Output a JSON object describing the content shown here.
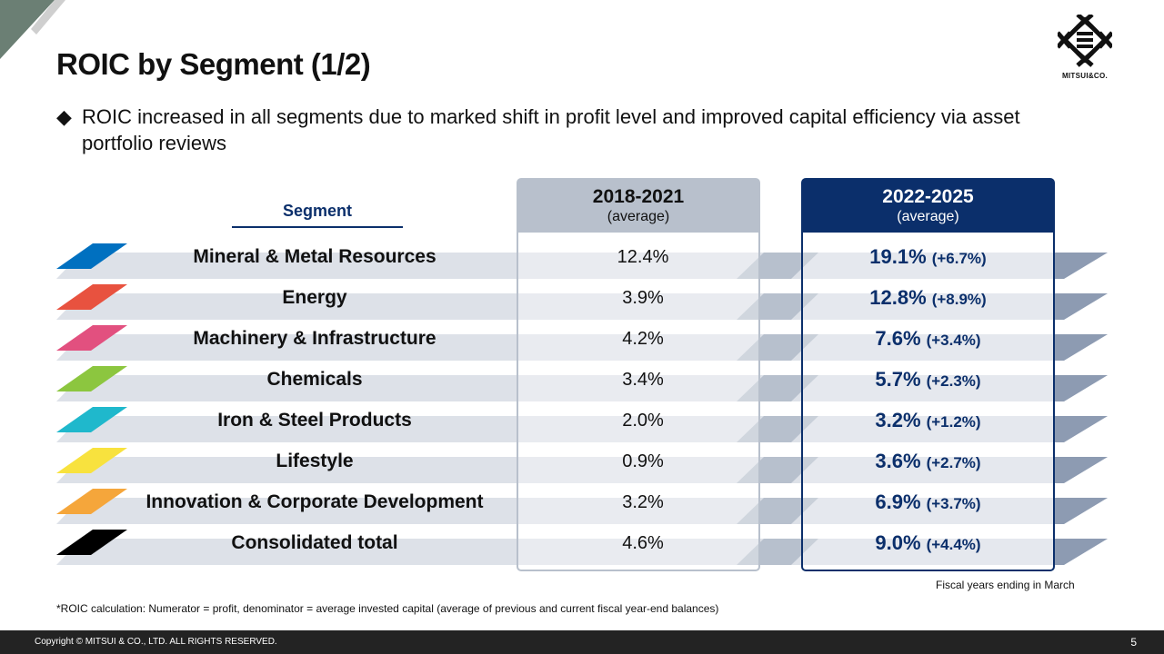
{
  "title": "ROIC by Segment (1/2)",
  "bullet": "ROIC increased in all segments due to marked shift in profit level and improved capital efficiency via asset portfolio reviews",
  "segment_header": "Segment",
  "columns": [
    {
      "years": "2018-2021",
      "sub": "(average)"
    },
    {
      "years": "2022-2025",
      "sub": "(average)"
    }
  ],
  "rows": [
    {
      "segment": "Mineral & Metal Resources",
      "color": "#0070c0",
      "prev": "12.4%",
      "curr": "19.1%",
      "diff": "(+6.7%)"
    },
    {
      "segment": "Energy",
      "color": "#e8523f",
      "prev": "3.9%",
      "curr": "12.8%",
      "diff": "(+8.9%)"
    },
    {
      "segment": "Machinery & Infrastructure",
      "color": "#e2507f",
      "prev": "4.2%",
      "curr": "7.6%",
      "diff": "(+3.4%)"
    },
    {
      "segment": "Chemicals",
      "color": "#8cc63f",
      "prev": "3.4%",
      "curr": "5.7%",
      "diff": "(+2.3%)"
    },
    {
      "segment": "Iron & Steel Products",
      "color": "#1fb8cc",
      "prev": "2.0%",
      "curr": "3.2%",
      "diff": "(+1.2%)"
    },
    {
      "segment": "Lifestyle",
      "color": "#f8e23e",
      "prev": "0.9%",
      "curr": "3.6%",
      "diff": "(+2.7%)"
    },
    {
      "segment": "Innovation & Corporate Development",
      "color": "#f5a63b",
      "prev": "3.2%",
      "curr": "6.9%",
      "diff": "(+3.7%)"
    },
    {
      "segment": "Consolidated total",
      "color": "#000000",
      "prev": "4.6%",
      "curr": "9.0%",
      "diff": "(+4.4%)"
    }
  ],
  "fiscal_note": "Fiscal years ending in March",
  "footnote": "*ROIC calculation: Numerator = profit, denominator = average invested capital (average of previous and current fiscal year-end balances)",
  "logo_text": "MITSUI&CO.",
  "copyright": "Copyright © MITSUI & CO., LTD. ALL RIGHTS RESERVED.",
  "page_number": "5"
}
